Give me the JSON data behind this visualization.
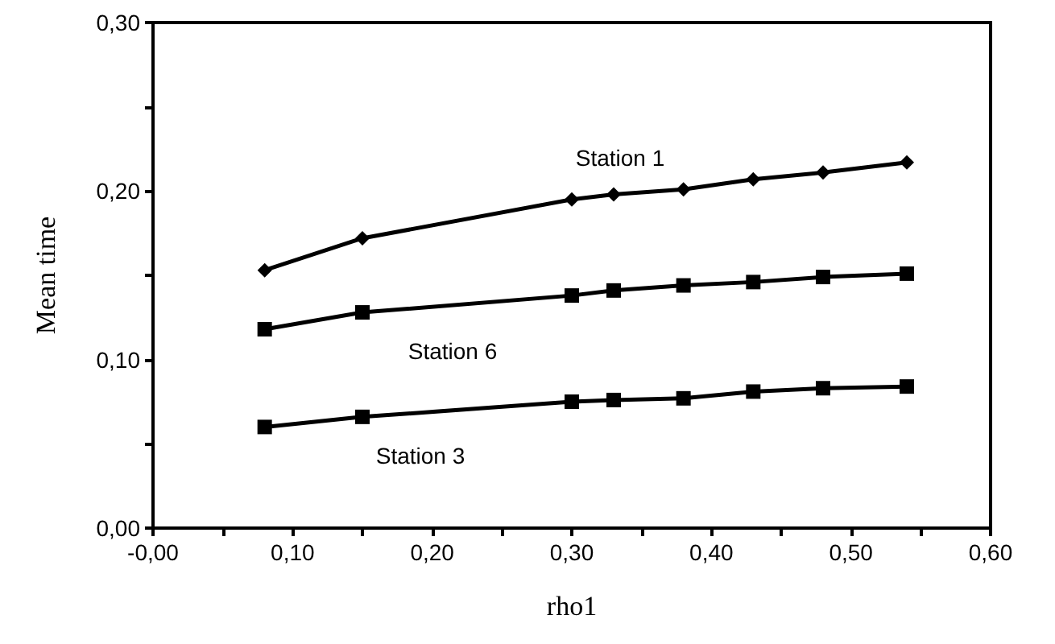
{
  "chart_data": {
    "type": "line",
    "xlabel": "rho1",
    "ylabel": "Mean time",
    "x": [
      0.08,
      0.15,
      0.3,
      0.33,
      0.38,
      0.43,
      0.48,
      0.54
    ],
    "series": [
      {
        "name": "Station 1",
        "color": "#000000",
        "marker": "diamond",
        "values": [
          0.153,
          0.172,
          0.195,
          0.198,
          0.201,
          0.207,
          0.211,
          0.217
        ]
      },
      {
        "name": "Station 6",
        "color": "#000000",
        "marker": "square",
        "values": [
          0.118,
          0.128,
          0.138,
          0.141,
          0.144,
          0.146,
          0.149,
          0.151
        ]
      },
      {
        "name": "Station 3",
        "color": "#000000",
        "marker": "square",
        "values": [
          0.06,
          0.066,
          0.075,
          0.076,
          0.077,
          0.081,
          0.083,
          0.084
        ]
      }
    ],
    "xlim": [
      0,
      0.6
    ],
    "xticks": [
      {
        "value": 0,
        "label": "-0,00"
      },
      {
        "value": 0.05,
        "label": null
      },
      {
        "value": 0.1,
        "label": "0,10"
      },
      {
        "value": 0.15,
        "label": null
      },
      {
        "value": 0.2,
        "label": "0,20"
      },
      {
        "value": 0.25,
        "label": null
      },
      {
        "value": 0.3,
        "label": "0,30"
      },
      {
        "value": 0.35,
        "label": null
      },
      {
        "value": 0.4,
        "label": "0,40"
      },
      {
        "value": 0.45,
        "label": null
      },
      {
        "value": 0.5,
        "label": "0,50"
      },
      {
        "value": 0.55,
        "label": null
      },
      {
        "value": 0.6,
        "label": "0,60"
      }
    ],
    "ylim": [
      0,
      0.3
    ],
    "yticks": [
      {
        "value": 0,
        "label": "0,00"
      },
      {
        "value": 0.05,
        "label": null
      },
      {
        "value": 0.1,
        "label": "0,10"
      },
      {
        "value": 0.15,
        "label": null
      },
      {
        "value": 0.2,
        "label": "0,20"
      },
      {
        "value": 0.25,
        "label": null
      },
      {
        "value": 0.3,
        "label": "0,30"
      }
    ],
    "grid": false,
    "line_style": "solid"
  }
}
